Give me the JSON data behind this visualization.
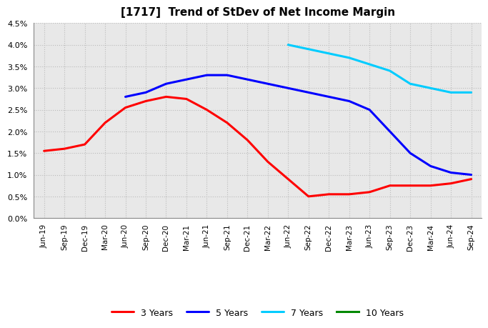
{
  "title": "[1717]  Trend of StDev of Net Income Margin",
  "background_color": "#ffffff",
  "plot_background": "#e8e8e8",
  "grid_color": "#bbbbbb",
  "x_labels": [
    "Jun-19",
    "Sep-19",
    "Dec-19",
    "Mar-20",
    "Jun-20",
    "Sep-20",
    "Dec-20",
    "Mar-21",
    "Jun-21",
    "Sep-21",
    "Dec-21",
    "Mar-22",
    "Jun-22",
    "Sep-22",
    "Dec-22",
    "Mar-23",
    "Jun-23",
    "Sep-23",
    "Dec-23",
    "Mar-24",
    "Jun-24",
    "Sep-24"
  ],
  "ylim": [
    0.0,
    0.045
  ],
  "yticks": [
    0.0,
    0.005,
    0.01,
    0.015,
    0.02,
    0.025,
    0.03,
    0.035,
    0.04,
    0.045
  ],
  "series": [
    {
      "name": "3 Years",
      "color": "#ff0000",
      "values": [
        0.0155,
        0.016,
        0.017,
        0.022,
        0.0255,
        0.027,
        0.028,
        0.0275,
        0.025,
        0.022,
        0.018,
        0.013,
        0.009,
        0.005,
        0.0055,
        0.0055,
        0.006,
        0.0075,
        0.0075,
        0.0075,
        0.008,
        0.009
      ]
    },
    {
      "name": "5 Years",
      "color": "#0000ff",
      "values": [
        null,
        null,
        null,
        null,
        0.028,
        0.029,
        0.031,
        0.032,
        0.033,
        0.033,
        0.032,
        0.031,
        0.03,
        0.029,
        0.028,
        0.027,
        0.025,
        0.02,
        0.015,
        0.012,
        0.0105,
        0.01
      ]
    },
    {
      "name": "7 Years",
      "color": "#00ccff",
      "values": [
        null,
        null,
        null,
        null,
        null,
        null,
        null,
        null,
        null,
        null,
        null,
        null,
        0.04,
        0.039,
        0.038,
        0.037,
        0.0355,
        0.034,
        0.031,
        0.03,
        0.029,
        0.029
      ]
    },
    {
      "name": "10 Years",
      "color": "#008800",
      "values": [
        null,
        null,
        null,
        null,
        null,
        null,
        null,
        null,
        null,
        null,
        null,
        null,
        null,
        null,
        null,
        null,
        null,
        null,
        null,
        null,
        null,
        null
      ]
    }
  ]
}
